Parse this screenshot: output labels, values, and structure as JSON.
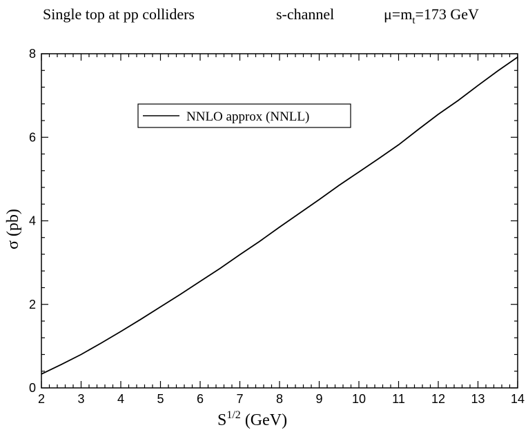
{
  "header": {
    "process": "Single top at  pp colliders",
    "channel": "s-channel",
    "scale_mu": "μ=m",
    "scale_sub": "t",
    "scale_value": "=173 GeV"
  },
  "chart_data": {
    "type": "line",
    "xlabel_main": "S",
    "xlabel_sup": "1/2",
    "xlabel_unit": " (GeV)",
    "ylabel_symbol": "σ",
    "ylabel_unit": " (pb)",
    "xlim": [
      2,
      14
    ],
    "ylim": [
      0,
      8
    ],
    "x_ticks": [
      2,
      3,
      4,
      5,
      6,
      7,
      8,
      9,
      10,
      11,
      12,
      13,
      14
    ],
    "y_ticks": [
      0,
      2,
      4,
      6,
      8
    ],
    "legend": {
      "placement": "upper-left, inside"
    },
    "series": [
      {
        "name": "NNLO approx (NNLL)",
        "color": "#000000",
        "x": [
          2,
          2.5,
          3,
          3.5,
          4,
          4.5,
          5,
          5.5,
          6,
          6.5,
          7,
          7.5,
          8,
          8.5,
          9,
          9.5,
          10,
          10.5,
          11,
          11.5,
          12,
          12.5,
          13,
          13.5,
          14
        ],
        "y": [
          0.33,
          0.56,
          0.8,
          1.07,
          1.35,
          1.64,
          1.94,
          2.24,
          2.55,
          2.86,
          3.19,
          3.51,
          3.85,
          4.18,
          4.51,
          4.85,
          5.17,
          5.49,
          5.82,
          6.19,
          6.55,
          6.88,
          7.24,
          7.59,
          7.92
        ]
      }
    ]
  }
}
